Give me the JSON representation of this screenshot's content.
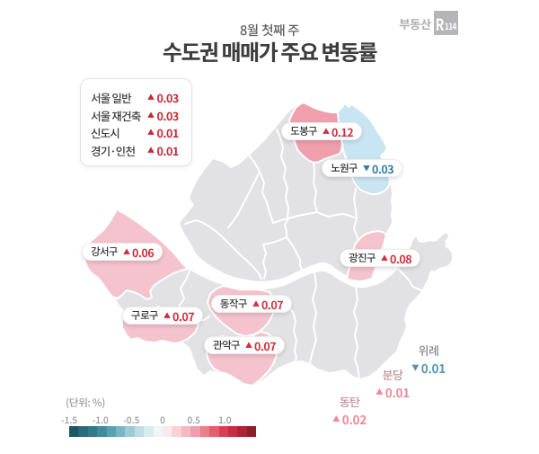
{
  "header": {
    "subtitle": "8월 첫째 주",
    "title": "수도권 매매가 주요 변동률"
  },
  "logo": {
    "prefix": "부동산",
    "mark_r": "R",
    "mark_num": "114"
  },
  "summary": {
    "rows": [
      {
        "label": "서울 일반",
        "arrow": "▲",
        "trend": "up",
        "value": "0.03"
      },
      {
        "label": "서울 재건축",
        "arrow": "▲",
        "trend": "up",
        "value": "0.03"
      },
      {
        "label": "신도시",
        "arrow": "▲",
        "trend": "up",
        "value": "0.01"
      },
      {
        "label": "경기·인천",
        "arrow": "▲",
        "trend": "up",
        "value": "0.01"
      }
    ]
  },
  "map": {
    "districts": [
      {
        "id": "dobong",
        "label": "도봉구",
        "arrow": "▲",
        "trend": "up",
        "value": "0.12"
      },
      {
        "id": "nowon",
        "label": "노원구",
        "arrow": "▼",
        "trend": "down",
        "value": "0.03"
      },
      {
        "id": "gangseo",
        "label": "강서구",
        "arrow": "▲",
        "trend": "up",
        "value": "0.06"
      },
      {
        "id": "gwangjin",
        "label": "광진구",
        "arrow": "▲",
        "trend": "up",
        "value": "0.08"
      },
      {
        "id": "guro",
        "label": "구로구",
        "arrow": "▲",
        "trend": "up",
        "value": "0.07"
      },
      {
        "id": "dongjak",
        "label": "동작구",
        "arrow": "▲",
        "trend": "up",
        "value": "0.07"
      },
      {
        "id": "gwanak",
        "label": "관악구",
        "arrow": "▲",
        "trend": "up",
        "value": "0.07"
      }
    ],
    "outside_areas": [
      {
        "id": "wirye",
        "label": "위례",
        "arrow": "▼",
        "trend": "down",
        "value": "0.01"
      },
      {
        "id": "bundang",
        "label": "분당",
        "arrow": "▲",
        "trend": "up",
        "value": "0.01"
      },
      {
        "id": "dongtan",
        "label": "동탄",
        "arrow": "▲",
        "trend": "up",
        "value": "0.02"
      }
    ]
  },
  "scale": {
    "unit_label": "(단위:  %)",
    "ticks": [
      "-1.5",
      "-1.0",
      "-0.5",
      "0",
      "0.5",
      "1.0"
    ],
    "segment_colors": [
      "#1f5667",
      "#2a6a7c",
      "#32798c",
      "#3f8ba0",
      "#58a0b2",
      "#79b6c5",
      "#9ccbd6",
      "#bcdde5",
      "#d8ecf0",
      "#edf7f8",
      "#fbe9ec",
      "#f8d2d8",
      "#f4b9c1",
      "#ef9da8",
      "#e97f8d",
      "#e25f70",
      "#d84052",
      "#c62f41",
      "#a92435",
      "#8e1d2c"
    ]
  },
  "colors": {
    "district_grey": "#e2e1e3",
    "pink_strong": "#f09fad",
    "pink_mid": "#f4c3cd",
    "blue_light": "#c9e4f2",
    "value_red": "#cf3340",
    "value_blue": "#2e7fa6",
    "outside_pink": "#e98894",
    "outside_blue": "#5795b5"
  },
  "chart_data": {
    "type": "map",
    "title": "수도권 매매가 주요 변동률",
    "period": "8월 첫째 주",
    "unit": "%",
    "summary": [
      {
        "region": "서울 일반",
        "change": 0.03
      },
      {
        "region": "서울 재건축",
        "change": 0.03
      },
      {
        "region": "신도시",
        "change": 0.01
      },
      {
        "region": "경기·인천",
        "change": 0.01
      }
    ],
    "regions": [
      {
        "name": "도봉구",
        "change": 0.12
      },
      {
        "name": "노원구",
        "change": -0.03
      },
      {
        "name": "강서구",
        "change": 0.06
      },
      {
        "name": "광진구",
        "change": 0.08
      },
      {
        "name": "구로구",
        "change": 0.07
      },
      {
        "name": "동작구",
        "change": 0.07
      },
      {
        "name": "관악구",
        "change": 0.07
      },
      {
        "name": "위례",
        "change": -0.01
      },
      {
        "name": "분당",
        "change": 0.01
      },
      {
        "name": "동탄",
        "change": 0.02
      }
    ],
    "color_scale": {
      "min": -1.5,
      "max": 1.5,
      "tick_step": 0.5
    }
  }
}
